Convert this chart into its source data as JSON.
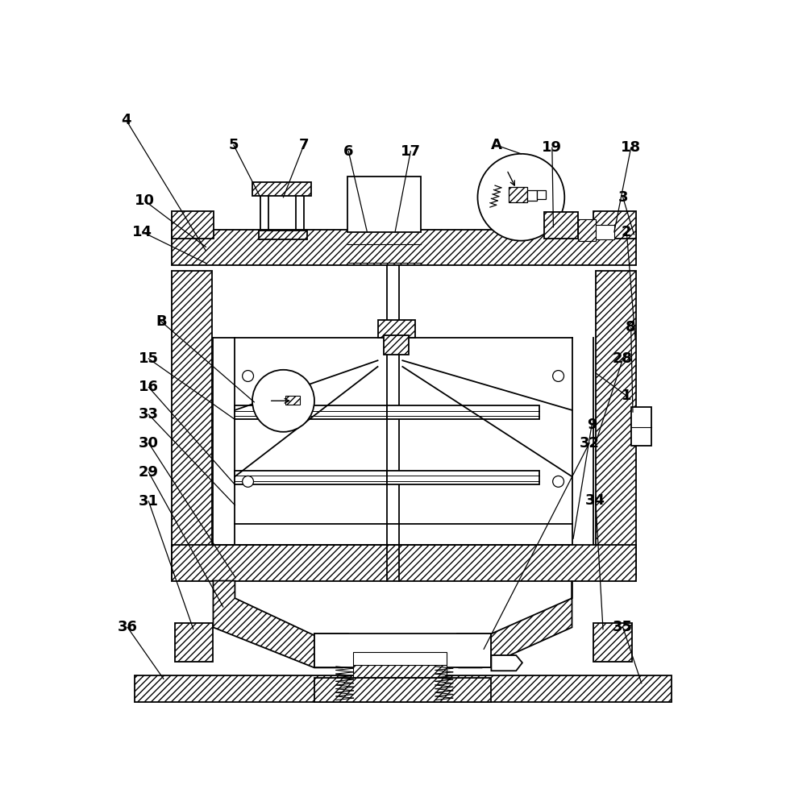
{
  "bg": "#ffffff",
  "lw": 1.3,
  "figsize": [
    9.75,
    10.0
  ],
  "dpi": 100
}
